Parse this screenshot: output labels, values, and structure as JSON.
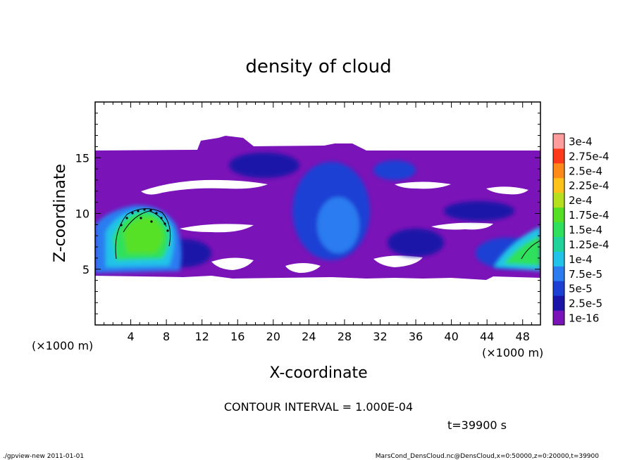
{
  "chart_data": {
    "type": "heatmap",
    "title": "density of cloud",
    "xlabel": "X-coordinate",
    "ylabel": "Z-coordinate",
    "x_unit_left": "(×1000 m)",
    "x_unit_right": "(×1000 m)",
    "xlim": [
      0,
      50
    ],
    "ylim": [
      0,
      20
    ],
    "xticks": [
      "4",
      "8",
      "12",
      "16",
      "20",
      "24",
      "28",
      "32",
      "36",
      "40",
      "44",
      "48"
    ],
    "yticks": [
      "5",
      "10",
      "15"
    ],
    "colorbar": {
      "levels": [
        "1e-16",
        "2.5e-5",
        "5e-5",
        "7.5e-5",
        "1e-4",
        "1.25e-4",
        "1.5e-4",
        "1.75e-4",
        "2e-4",
        "2.25e-4",
        "2.5e-4",
        "2.75e-4",
        "3e-4"
      ],
      "colors": [
        "#7a13b8",
        "#1a14a8",
        "#1c3fd4",
        "#2a7cf0",
        "#22c3e8",
        "#1fd39a",
        "#2ee05c",
        "#56e025",
        "#b6e01d",
        "#ffc21a",
        "#ff8a1a",
        "#ff3a1a",
        "#ff9c9c"
      ]
    },
    "contour_interval_text": "CONTOUR INTERVAL = 1.000E-04",
    "time_text": "t=39900 s"
  },
  "footer": {
    "left": "./gpview-new   2011-01-01",
    "right": "MarsCond_DensCloud.nc@DensCloud,x=0:50000,z=0:20000,t=39900"
  }
}
